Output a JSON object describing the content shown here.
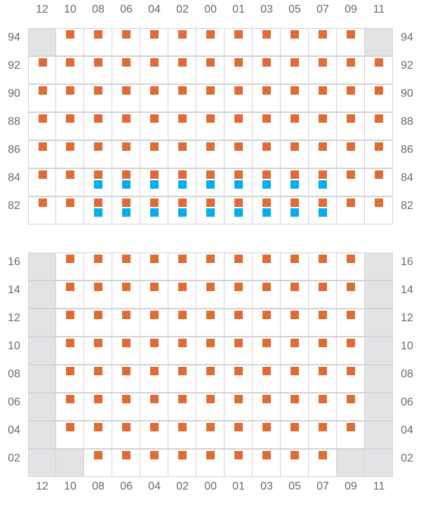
{
  "columns": [
    "12",
    "10",
    "08",
    "06",
    "04",
    "02",
    "00",
    "01",
    "03",
    "05",
    "07",
    "09",
    "11"
  ],
  "colors": {
    "primary_marker": "#E06B35",
    "secondary_marker": "#00AEEF",
    "disabled_cell": "#E3E3E6",
    "grid_line": "#D4D4D8"
  },
  "legend_codes": {
    "x": "disabled",
    "o": "primary-marker",
    "ob": "primary-and-secondary-marker",
    "": "empty"
  },
  "grids": [
    {
      "rows": [
        "94",
        "92",
        "90",
        "88",
        "86",
        "84",
        "82"
      ],
      "cells": [
        [
          "x",
          "o",
          "o",
          "o",
          "o",
          "o",
          "o",
          "o",
          "o",
          "o",
          "o",
          "o",
          "x"
        ],
        [
          "o",
          "o",
          "o",
          "o",
          "o",
          "o",
          "o",
          "o",
          "o",
          "o",
          "o",
          "o",
          "o"
        ],
        [
          "o",
          "o",
          "o",
          "o",
          "o",
          "o",
          "o",
          "o",
          "o",
          "o",
          "o",
          "o",
          "o"
        ],
        [
          "o",
          "o",
          "o",
          "o",
          "o",
          "o",
          "o",
          "o",
          "o",
          "o",
          "o",
          "o",
          "o"
        ],
        [
          "o",
          "o",
          "o",
          "o",
          "o",
          "o",
          "o",
          "o",
          "o",
          "o",
          "o",
          "o",
          "o"
        ],
        [
          "o",
          "o",
          "ob",
          "ob",
          "ob",
          "ob",
          "ob",
          "ob",
          "ob",
          "ob",
          "ob",
          "o",
          "o"
        ],
        [
          "o",
          "o",
          "ob",
          "ob",
          "ob",
          "ob",
          "ob",
          "ob",
          "ob",
          "ob",
          "ob",
          "o",
          "o"
        ]
      ]
    },
    {
      "rows": [
        "16",
        "14",
        "12",
        "10",
        "08",
        "06",
        "04",
        "02"
      ],
      "cells": [
        [
          "x",
          "o",
          "o",
          "o",
          "o",
          "o",
          "o",
          "o",
          "o",
          "o",
          "o",
          "o",
          "x"
        ],
        [
          "x",
          "o",
          "o",
          "o",
          "o",
          "o",
          "o",
          "o",
          "o",
          "o",
          "o",
          "o",
          "x"
        ],
        [
          "x",
          "o",
          "o",
          "o",
          "o",
          "o",
          "o",
          "o",
          "o",
          "o",
          "o",
          "o",
          "x"
        ],
        [
          "x",
          "o",
          "o",
          "o",
          "o",
          "o",
          "o",
          "o",
          "o",
          "o",
          "o",
          "o",
          "x"
        ],
        [
          "x",
          "o",
          "o",
          "o",
          "o",
          "o",
          "o",
          "o",
          "o",
          "o",
          "o",
          "o",
          "x"
        ],
        [
          "x",
          "o",
          "o",
          "o",
          "o",
          "o",
          "o",
          "o",
          "o",
          "o",
          "o",
          "o",
          "x"
        ],
        [
          "x",
          "o",
          "o",
          "o",
          "o",
          "o",
          "o",
          "o",
          "o",
          "o",
          "o",
          "o",
          "x"
        ],
        [
          "x",
          "x",
          "o",
          "o",
          "o",
          "o",
          "o",
          "o",
          "o",
          "o",
          "o",
          "x",
          "x"
        ]
      ]
    }
  ]
}
